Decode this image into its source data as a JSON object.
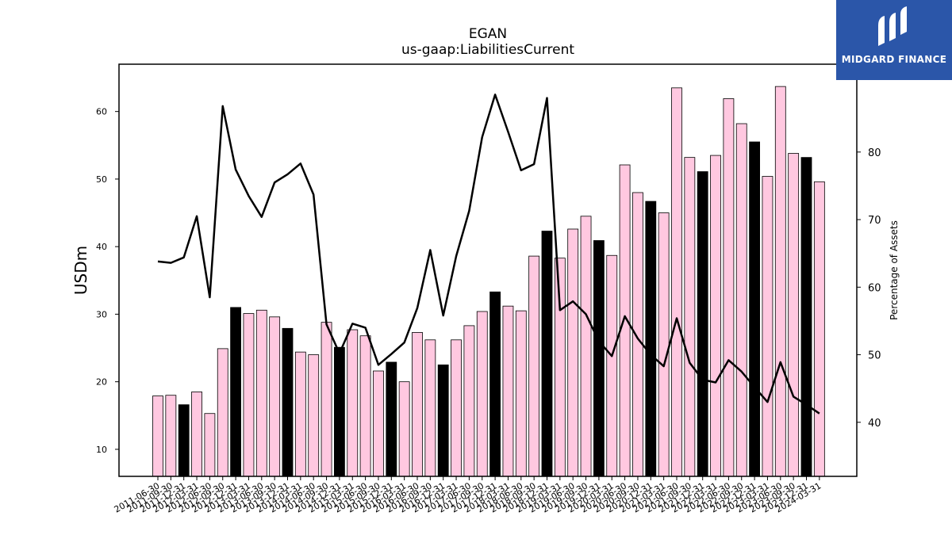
{
  "logo": {
    "text": "MIDGARD FINANCE",
    "icon": "midgard-logo-icon",
    "color": "#2b56a9"
  },
  "chart_data": {
    "type": "bar",
    "title": "EGAN",
    "subtitle": "us-gaap:LiabilitiesCurrent",
    "ylabel": "USDm",
    "y2label": "Percentage of Assets",
    "ylim": [
      6,
      67
    ],
    "y2lim": [
      32,
      93
    ],
    "yticks": [
      10,
      20,
      30,
      40,
      50,
      60
    ],
    "y2ticks": [
      40,
      50,
      60,
      70,
      80
    ],
    "grid": false,
    "colors": {
      "bar": "#ffc8e0",
      "highlight": "#000000",
      "line": "#000000"
    },
    "categories": [
      "2011-06-30",
      "2011-09-30",
      "2011-12-31",
      "2012-03-31",
      "2012-06-30",
      "2012-09-30",
      "2012-12-31",
      "2013-03-31",
      "2013-06-30",
      "2013-09-30",
      "2013-12-31",
      "2014-03-31",
      "2014-06-30",
      "2014-09-30",
      "2014-12-31",
      "2015-03-31",
      "2015-06-30",
      "2015-09-30",
      "2015-12-31",
      "2016-03-31",
      "2016-06-30",
      "2016-09-30",
      "2016-12-31",
      "2017-03-31",
      "2017-06-30",
      "2017-09-30",
      "2017-12-31",
      "2018-03-31",
      "2018-06-30",
      "2018-09-30",
      "2018-12-31",
      "2019-03-31",
      "2019-06-30",
      "2019-09-30",
      "2019-12-31",
      "2020-03-31",
      "2020-06-30",
      "2020-09-30",
      "2020-12-31",
      "2021-03-31",
      "2021-06-30",
      "2021-09-30",
      "2021-12-31",
      "2022-03-31",
      "2022-06-30",
      "2022-09-30",
      "2022-12-31",
      "2023-03-31",
      "2023-06-30",
      "2023-09-30",
      "2023-12-31",
      "2024-03-31"
    ],
    "series": [
      {
        "type": "bar",
        "values": [
          17.9,
          18.0,
          16.6,
          18.5,
          15.3,
          24.9,
          31.0,
          30.1,
          30.6,
          29.6,
          27.9,
          24.4,
          24.0,
          28.8,
          25.1,
          27.7,
          26.8,
          21.6,
          22.9,
          20.0,
          27.3,
          26.2,
          22.5,
          26.2,
          28.3,
          30.4,
          33.3,
          31.2,
          30.5,
          38.6,
          42.3,
          38.3,
          42.6,
          44.5,
          40.9,
          38.7,
          52.1,
          48.0,
          46.7,
          45.0,
          63.5,
          53.2,
          51.1,
          53.5,
          61.9,
          58.2,
          55.5,
          50.4,
          63.7,
          53.8,
          53.2,
          49.6
        ],
        "highlight": [
          false,
          false,
          true,
          false,
          false,
          false,
          true,
          false,
          false,
          false,
          true,
          false,
          false,
          false,
          true,
          false,
          false,
          false,
          true,
          false,
          false,
          false,
          true,
          false,
          false,
          false,
          true,
          false,
          false,
          false,
          true,
          false,
          false,
          false,
          true,
          false,
          false,
          false,
          true,
          false,
          false,
          false,
          true,
          false,
          false,
          false,
          true,
          false,
          false,
          false,
          true,
          false
        ]
      },
      {
        "type": "line",
        "axis": "right",
        "values": [
          63.8,
          63.6,
          64.4,
          70.5,
          58.5,
          86.8,
          77.4,
          73.5,
          70.4,
          75.5,
          76.7,
          78.3,
          73.7,
          54.5,
          50.2,
          54.6,
          54.0,
          48.5,
          50.1,
          51.8,
          56.9,
          65.5,
          55.8,
          64.6,
          71.3,
          82.2,
          88.5,
          83.0,
          77.3,
          78.2,
          88.0,
          56.6,
          57.9,
          56.0,
          52.0,
          49.8,
          55.7,
          52.4,
          50.0,
          48.3,
          55.4,
          48.8,
          46.3,
          45.9,
          49.2,
          47.5,
          45.2,
          43.0,
          48.9,
          43.8,
          42.6,
          41.3
        ]
      }
    ]
  }
}
